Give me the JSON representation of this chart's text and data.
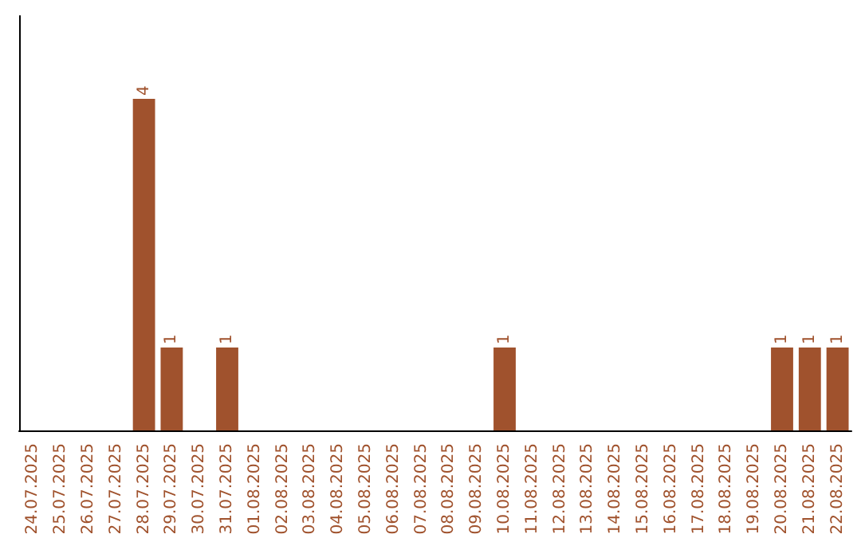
{
  "chart_data": {
    "type": "bar",
    "categories": [
      "24.07.2025",
      "25.07.2025",
      "26.07.2025",
      "27.07.2025",
      "28.07.2025",
      "29.07.2025",
      "30.07.2025",
      "31.07.2025",
      "01.08.2025",
      "02.08.2025",
      "03.08.2025",
      "04.08.2025",
      "05.08.2025",
      "06.08.2025",
      "07.08.2025",
      "08.08.2025",
      "09.08.2025",
      "10.08.2025",
      "11.08.2025",
      "12.08.2025",
      "13.08.2025",
      "14.08.2025",
      "15.08.2025",
      "16.08.2025",
      "17.08.2025",
      "18.08.2025",
      "19.08.2025",
      "20.08.2025",
      "21.08.2025",
      "22.08.2025"
    ],
    "values": [
      0,
      0,
      0,
      0,
      4,
      1,
      0,
      1,
      0,
      0,
      0,
      0,
      0,
      0,
      0,
      0,
      0,
      1,
      0,
      0,
      0,
      0,
      0,
      0,
      0,
      0,
      0,
      1,
      1,
      1
    ],
    "value_labels": [
      null,
      null,
      null,
      null,
      "4",
      "1",
      null,
      "1",
      null,
      null,
      null,
      null,
      null,
      null,
      null,
      null,
      null,
      "1",
      null,
      null,
      null,
      null,
      null,
      null,
      null,
      null,
      null,
      "1",
      "1",
      "1"
    ],
    "color": "#a0522d",
    "grid": false,
    "tick_labels": "x"
  }
}
